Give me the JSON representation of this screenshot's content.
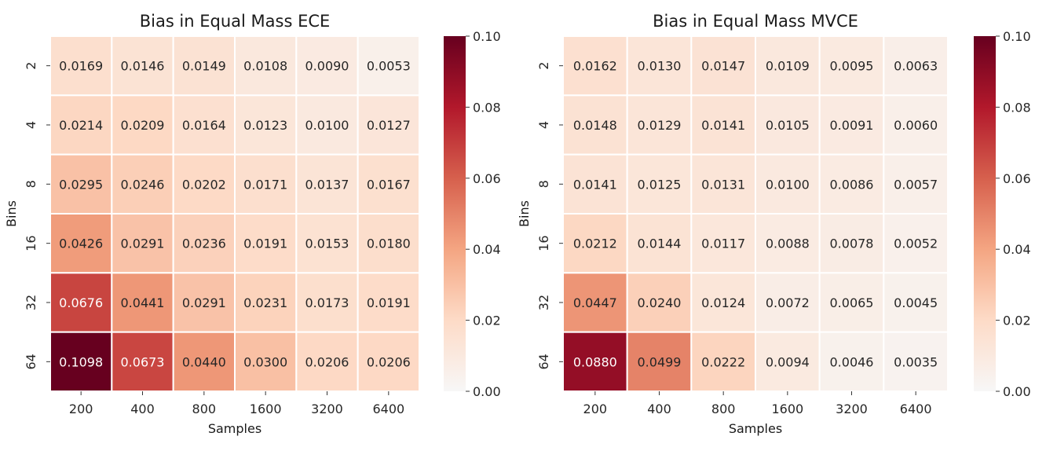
{
  "chart_data": [
    {
      "type": "heatmap",
      "title": "Bias in Equal Mass ECE",
      "xlabel": "Samples",
      "ylabel": "Bins",
      "x": [
        "200",
        "400",
        "800",
        "1600",
        "3200",
        "6400"
      ],
      "y": [
        "2",
        "4",
        "8",
        "16",
        "32",
        "64"
      ],
      "values": [
        [
          0.0169,
          0.0146,
          0.0149,
          0.0108,
          0.009,
          0.0053
        ],
        [
          0.0214,
          0.0209,
          0.0164,
          0.0123,
          0.01,
          0.0127
        ],
        [
          0.0295,
          0.0246,
          0.0202,
          0.0171,
          0.0137,
          0.0167
        ],
        [
          0.0426,
          0.0291,
          0.0236,
          0.0191,
          0.0153,
          0.018
        ],
        [
          0.0676,
          0.0441,
          0.0291,
          0.0231,
          0.0173,
          0.0191
        ],
        [
          0.1098,
          0.0673,
          0.044,
          0.03,
          0.0206,
          0.0206
        ]
      ],
      "colorbar": {
        "min": 0.0,
        "max": 0.1,
        "ticks": [
          "0.00",
          "0.02",
          "0.04",
          "0.06",
          "0.08",
          "0.10"
        ]
      },
      "colormap": "RdBu_r"
    },
    {
      "type": "heatmap",
      "title": "Bias in Equal Mass MVCE",
      "xlabel": "Samples",
      "ylabel": "Bins",
      "x": [
        "200",
        "400",
        "800",
        "1600",
        "3200",
        "6400"
      ],
      "y": [
        "2",
        "4",
        "8",
        "16",
        "32",
        "64"
      ],
      "values": [
        [
          0.0162,
          0.013,
          0.0147,
          0.0109,
          0.0095,
          0.0063
        ],
        [
          0.0148,
          0.0129,
          0.0141,
          0.0105,
          0.0091,
          0.006
        ],
        [
          0.0141,
          0.0125,
          0.0131,
          0.01,
          0.0086,
          0.0057
        ],
        [
          0.0212,
          0.0144,
          0.0117,
          0.0088,
          0.0078,
          0.0052
        ],
        [
          0.0447,
          0.024,
          0.0124,
          0.0072,
          0.0065,
          0.0045
        ],
        [
          0.088,
          0.0499,
          0.0222,
          0.0094,
          0.0046,
          0.0035
        ]
      ],
      "colorbar": {
        "min": 0.0,
        "max": 0.1,
        "ticks": [
          "0.00",
          "0.02",
          "0.04",
          "0.06",
          "0.08",
          "0.10"
        ]
      },
      "colormap": "RdBu_r"
    }
  ]
}
